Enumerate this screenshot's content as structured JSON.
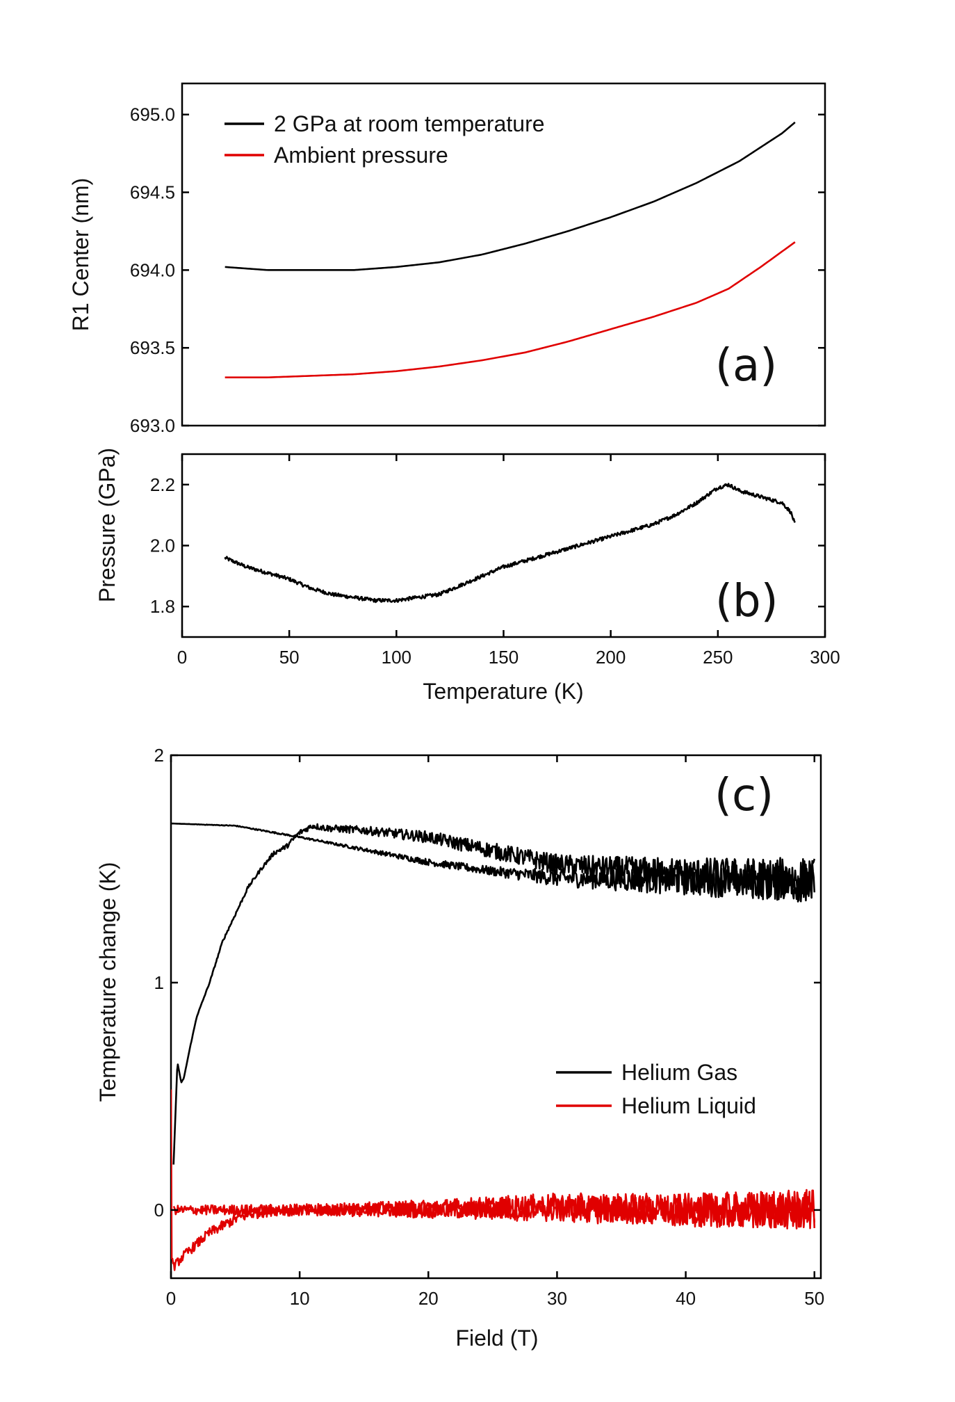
{
  "chart_data": [
    {
      "panel": "(a)",
      "type": "line",
      "xlabel": "",
      "ylabel": "R1 Center (nm)",
      "xlim": [
        0,
        300
      ],
      "ylim": [
        693.0,
        695.2
      ],
      "x_ticks": [],
      "y_ticks": [
        693.0,
        693.5,
        694.0,
        694.5,
        695.0
      ],
      "y_tick_labels": [
        "693.0",
        "693.5",
        "694.0",
        "694.5",
        "695.0"
      ],
      "legend_position": "top-left",
      "series": [
        {
          "name": "2 GPa at room temperature",
          "color": "#000000",
          "x": [
            20,
            40,
            60,
            80,
            100,
            120,
            140,
            160,
            180,
            200,
            220,
            240,
            260,
            280,
            286
          ],
          "y": [
            694.02,
            694.0,
            694.0,
            694.0,
            694.02,
            694.05,
            694.1,
            694.17,
            694.25,
            694.34,
            694.44,
            694.56,
            694.7,
            694.88,
            694.95
          ]
        },
        {
          "name": "Ambient pressure",
          "color": "#e00000",
          "x": [
            20,
            40,
            60,
            80,
            100,
            120,
            140,
            160,
            180,
            200,
            220,
            240,
            255,
            270,
            286
          ],
          "y": [
            693.31,
            693.31,
            693.32,
            693.33,
            693.35,
            693.38,
            693.42,
            693.47,
            693.54,
            693.62,
            693.7,
            693.79,
            693.88,
            694.02,
            694.18
          ]
        }
      ]
    },
    {
      "panel": "(b)",
      "type": "line",
      "xlabel": "Temperature (K)",
      "ylabel": "Pressure (GPa)",
      "xlim": [
        0,
        300
      ],
      "ylim": [
        1.7,
        2.3
      ],
      "x_ticks": [
        0,
        50,
        100,
        150,
        200,
        250,
        300
      ],
      "x_tick_labels": [
        "0",
        "50",
        "100",
        "150",
        "200",
        "250",
        "300"
      ],
      "y_ticks": [
        1.8,
        2.0,
        2.2
      ],
      "y_tick_labels": [
        "1.8",
        "2.0",
        "2.2"
      ],
      "series": [
        {
          "color": "#000000",
          "noise": 0.006,
          "x": [
            20,
            30,
            40,
            50,
            60,
            70,
            80,
            90,
            100,
            110,
            120,
            130,
            140,
            150,
            160,
            170,
            180,
            190,
            200,
            210,
            220,
            230,
            240,
            250,
            255,
            260,
            270,
            280,
            284,
            286
          ],
          "y": [
            1.96,
            1.93,
            1.91,
            1.89,
            1.86,
            1.84,
            1.83,
            1.82,
            1.82,
            1.83,
            1.84,
            1.87,
            1.9,
            1.93,
            1.95,
            1.97,
            1.99,
            2.01,
            2.03,
            2.05,
            2.07,
            2.1,
            2.14,
            2.19,
            2.2,
            2.18,
            2.16,
            2.14,
            2.11,
            2.07
          ]
        }
      ]
    },
    {
      "panel": "(c)",
      "type": "line",
      "xlabel": "Field (T)",
      "ylabel": "Temperature change (K)",
      "xlim": [
        0,
        50.5
      ],
      "ylim": [
        -0.3,
        2.0
      ],
      "x_ticks": [
        0,
        10,
        20,
        30,
        40,
        50
      ],
      "x_tick_labels": [
        "0",
        "10",
        "20",
        "30",
        "40",
        "50"
      ],
      "y_ticks": [
        0,
        1,
        2
      ],
      "y_tick_labels": [
        "0",
        "1",
        "2"
      ],
      "legend_position": "center-right",
      "series": [
        {
          "name": "Helium Gas",
          "color": "#000000",
          "segments": [
            {
              "noise": [
                0.0,
                0.005,
                0.02,
                0.06,
                0.09
              ],
              "x": [
                0,
                5,
                10,
                20,
                25,
                30,
                40,
                50
              ],
              "y": [
                1.7,
                1.69,
                1.64,
                1.53,
                1.49,
                1.46,
                1.45,
                1.44
              ]
            },
            {
              "noise": [
                0.0,
                0.02,
                0.05,
                0.1
              ],
              "x": [
                0.2,
                0.5,
                0.8,
                1.0,
                1.5,
                2,
                3,
                4,
                5,
                6,
                7,
                8,
                9,
                10,
                11,
                12,
                15,
                20,
                25,
                30,
                40,
                50
              ],
              "y": [
                0.2,
                0.65,
                0.56,
                0.58,
                0.72,
                0.85,
                1.0,
                1.18,
                1.3,
                1.42,
                1.5,
                1.57,
                1.6,
                1.66,
                1.69,
                1.68,
                1.67,
                1.64,
                1.58,
                1.52,
                1.48,
                1.45
              ]
            }
          ]
        },
        {
          "name": "Helium Liquid",
          "color": "#e00000",
          "segments": [
            {
              "noise": [
                0.02,
                0.03,
                0.06,
                0.09
              ],
              "x": [
                0,
                0.05,
                0.2,
                1,
                2,
                3,
                4,
                5,
                6,
                8,
                10,
                20,
                30,
                40,
                50
              ],
              "y": [
                0.55,
                -0.2,
                -0.25,
                -0.2,
                -0.15,
                -0.1,
                -0.07,
                -0.04,
                -0.02,
                0.0,
                0.0,
                0.0,
                0.0,
                0.0,
                0.0
              ]
            },
            {
              "noise": [
                0.02,
                0.03,
                0.06,
                0.09
              ],
              "x": [
                0.2,
                10,
                20,
                30,
                40,
                50
              ],
              "y": [
                0.0,
                0.0,
                0.01,
                0.02,
                0.0,
                0.0
              ]
            }
          ]
        }
      ]
    }
  ]
}
